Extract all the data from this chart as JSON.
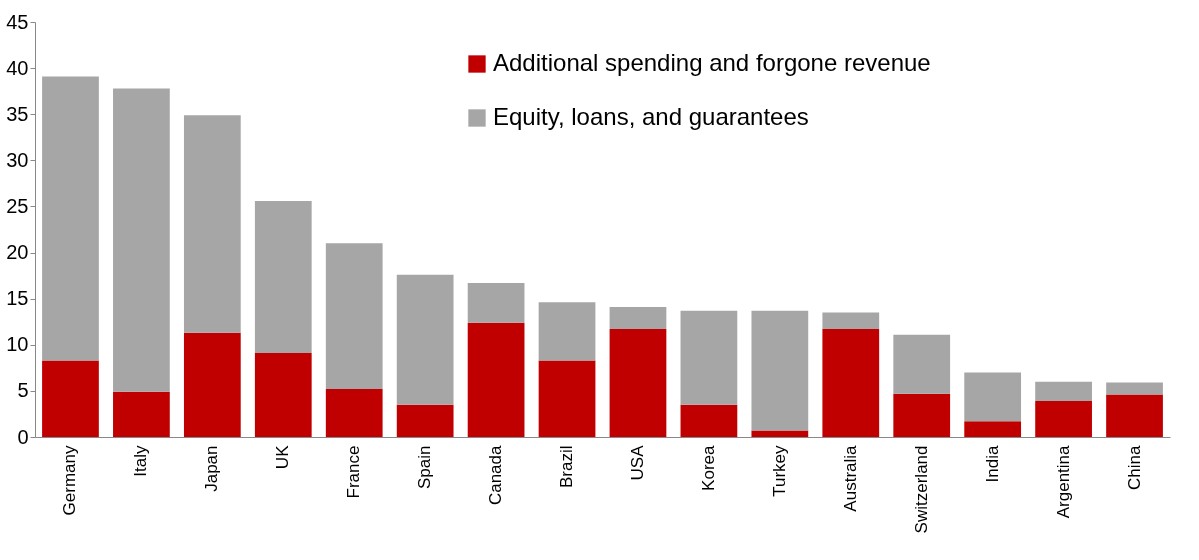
{
  "chart_data": {
    "type": "bar",
    "stacked": true,
    "categories": [
      "Germany",
      "Italy",
      "Japan",
      "UK",
      "France",
      "Spain",
      "Canada",
      "Brazil",
      "USA",
      "Korea",
      "Turkey",
      "Australia",
      "Switzerland",
      "India",
      "Argentina",
      "China"
    ],
    "series": [
      {
        "name": "Additional spending and forgone revenue",
        "color": "#c00000",
        "values": [
          8.3,
          4.9,
          11.3,
          9.1,
          5.2,
          3.5,
          12.4,
          8.3,
          11.7,
          3.5,
          0.7,
          11.7,
          4.7,
          1.7,
          3.9,
          4.6
        ]
      },
      {
        "name": "Equity, loans, and guarantees",
        "color": "#a6a6a6",
        "values": [
          30.8,
          32.9,
          23.6,
          16.5,
          15.8,
          14.1,
          4.3,
          6.3,
          2.4,
          10.2,
          13.0,
          1.8,
          6.4,
          5.3,
          2.1,
          1.3
        ]
      }
    ],
    "ylim": [
      0,
      45
    ],
    "yticks": [
      0,
      5,
      10,
      15,
      20,
      25,
      30,
      35,
      40,
      45
    ],
    "grid": false,
    "legend": "top right"
  }
}
